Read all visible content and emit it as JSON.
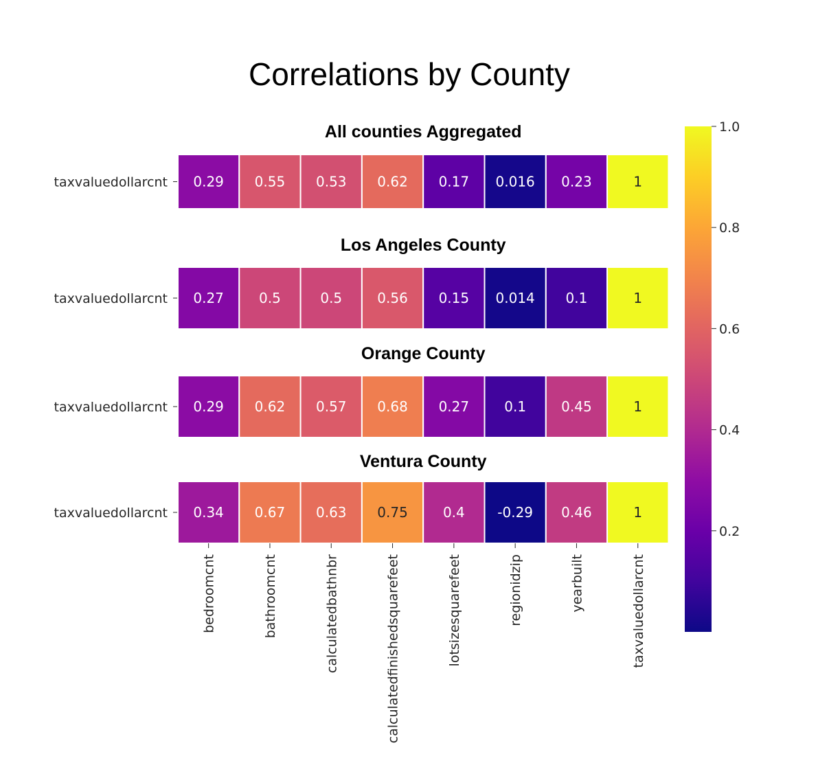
{
  "figure": {
    "title": "Correlations by County"
  },
  "colorbar": {
    "colormap": "plasma",
    "min": 0,
    "max": 1.0,
    "ticks": [
      {
        "value": 0.2,
        "label": "0.2"
      },
      {
        "value": 0.4,
        "label": "0.4"
      },
      {
        "value": 0.6,
        "label": "0.6"
      },
      {
        "value": 0.8,
        "label": "0.8"
      },
      {
        "value": 1.0,
        "label": "1.0"
      }
    ]
  },
  "chart_data": [
    {
      "type": "heatmap",
      "title": "All counties Aggregated",
      "row_label": "taxvaluedollarcnt",
      "columns": [
        "bedroomcnt",
        "bathroomcnt",
        "calculatedbathnbr",
        "calculatedfinishedsquarefeet",
        "lotsizesquarefeet",
        "regionidzip",
        "yearbuilt",
        "taxvaluedollarcnt"
      ],
      "values": [
        0.29,
        0.55,
        0.53,
        0.62,
        0.17,
        0.016,
        0.23,
        1
      ],
      "labels": [
        "0.29",
        "0.55",
        "0.53",
        "0.62",
        "0.17",
        "0.016",
        "0.23",
        "1"
      ]
    },
    {
      "type": "heatmap",
      "title": "Los Angeles County",
      "row_label": "taxvaluedollarcnt",
      "columns": [
        "bedroomcnt",
        "bathroomcnt",
        "calculatedbathnbr",
        "calculatedfinishedsquarefeet",
        "lotsizesquarefeet",
        "regionidzip",
        "yearbuilt",
        "taxvaluedollarcnt"
      ],
      "values": [
        0.27,
        0.5,
        0.5,
        0.56,
        0.15,
        0.014,
        0.1,
        1
      ],
      "labels": [
        "0.27",
        "0.5",
        "0.5",
        "0.56",
        "0.15",
        "0.014",
        "0.1",
        "1"
      ]
    },
    {
      "type": "heatmap",
      "title": "Orange County",
      "row_label": "taxvaluedollarcnt",
      "columns": [
        "bedroomcnt",
        "bathroomcnt",
        "calculatedbathnbr",
        "calculatedfinishedsquarefeet",
        "lotsizesquarefeet",
        "regionidzip",
        "yearbuilt",
        "taxvaluedollarcnt"
      ],
      "values": [
        0.29,
        0.62,
        0.57,
        0.68,
        0.27,
        0.1,
        0.45,
        1
      ],
      "labels": [
        "0.29",
        "0.62",
        "0.57",
        "0.68",
        "0.27",
        "0.1",
        "0.45",
        "1"
      ]
    },
    {
      "type": "heatmap",
      "title": "Ventura County",
      "row_label": "taxvaluedollarcnt",
      "columns": [
        "bedroomcnt",
        "bathroomcnt",
        "calculatedbathnbr",
        "calculatedfinishedsquarefeet",
        "lotsizesquarefeet",
        "regionidzip",
        "yearbuilt",
        "taxvaluedollarcnt"
      ],
      "values": [
        0.34,
        0.67,
        0.63,
        0.75,
        0.4,
        -0.29,
        0.46,
        1
      ],
      "labels": [
        "0.34",
        "0.67",
        "0.63",
        "0.75",
        "0.4",
        "-0.29",
        "0.46",
        "1"
      ]
    }
  ]
}
